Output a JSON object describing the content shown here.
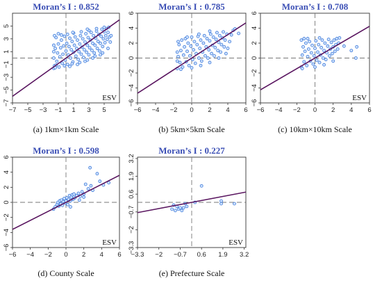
{
  "chart_data": [
    {
      "type": "scatter",
      "caption": "(a) 1km×1km Scale",
      "title": "Moran’s I : 0.852",
      "xlabel": "ESV",
      "ylabel": "",
      "xlim": [
        -7,
        7
      ],
      "ylim": [
        -7,
        7
      ],
      "xticks": [
        -7,
        -5,
        -3,
        -1,
        1,
        3,
        5
      ],
      "yticks": [
        -7,
        -5,
        -3,
        -1,
        1,
        3,
        5
      ],
      "ytick_rotation": "vertical",
      "grid": false,
      "fit_line": {
        "slope": 0.852,
        "intercept": 0
      },
      "points": [
        [
          -1.5,
          -1.2
        ],
        [
          -1.4,
          1.5
        ],
        [
          -1.3,
          3.2
        ],
        [
          -1.2,
          -0.5
        ],
        [
          -1.1,
          0.8
        ],
        [
          -1,
          2.2
        ],
        [
          -0.9,
          -1.4
        ],
        [
          -0.8,
          0.2
        ],
        [
          -0.7,
          1.6
        ],
        [
          -0.6,
          2.8
        ],
        [
          -0.5,
          -0.8
        ],
        [
          -0.4,
          0.6
        ],
        [
          -0.3,
          1.9
        ],
        [
          -0.2,
          3.4
        ],
        [
          -0.1,
          -0.3
        ],
        [
          0,
          1.1
        ],
        [
          0.1,
          2.3
        ],
        [
          0.2,
          -1
        ],
        [
          0.3,
          0.5
        ],
        [
          0.4,
          1.8
        ],
        [
          0.5,
          3.1
        ],
        [
          0.6,
          0
        ],
        [
          0.7,
          1.3
        ],
        [
          0.8,
          2.6
        ],
        [
          0.9,
          -0.6
        ],
        [
          1,
          0.9
        ],
        [
          1.1,
          2
        ],
        [
          1.2,
          3.3
        ],
        [
          1.3,
          0.3
        ],
        [
          1.4,
          1.5
        ],
        [
          1.5,
          2.8
        ],
        [
          1.6,
          -0.2
        ],
        [
          1.7,
          1
        ],
        [
          1.8,
          2.2
        ],
        [
          1.9,
          3.5
        ],
        [
          2,
          0.6
        ],
        [
          2.1,
          1.7
        ],
        [
          2.2,
          3
        ],
        [
          2.3,
          0.1
        ],
        [
          2.4,
          1.3
        ],
        [
          2.5,
          2.5
        ],
        [
          2.6,
          3.8
        ],
        [
          2.7,
          0.9
        ],
        [
          2.8,
          2
        ],
        [
          2.9,
          3.2
        ],
        [
          3,
          0.5
        ],
        [
          3.1,
          1.6
        ],
        [
          3.2,
          2.8
        ],
        [
          3.3,
          4
        ],
        [
          3.4,
          1.2
        ],
        [
          3.5,
          2.3
        ],
        [
          3.6,
          3.5
        ],
        [
          3.7,
          0.8
        ],
        [
          3.8,
          2
        ],
        [
          3.9,
          3.1
        ],
        [
          4,
          4.2
        ],
        [
          4.1,
          1.5
        ],
        [
          4.2,
          2.6
        ],
        [
          4.3,
          3.7
        ],
        [
          4.4,
          1.1
        ],
        [
          4.5,
          2.3
        ],
        [
          4.6,
          3.4
        ],
        [
          4.7,
          4.5
        ],
        [
          4.8,
          1.8
        ],
        [
          4.9,
          3
        ],
        [
          5,
          4.1
        ],
        [
          5.1,
          2.4
        ],
        [
          5.2,
          3.5
        ],
        [
          5.3,
          4.6
        ],
        [
          5.4,
          2.9
        ],
        [
          5.5,
          4
        ],
        [
          5.6,
          4.8
        ],
        [
          5.7,
          3.3
        ],
        [
          -1.6,
          0
        ],
        [
          -1.6,
          2
        ],
        [
          -1.6,
          -1.6
        ],
        [
          -1.5,
          3.5
        ],
        [
          -1.6,
          1
        ],
        [
          -1.4,
          -1.5
        ],
        [
          0.5,
          -1.3
        ],
        [
          1.5,
          -1
        ],
        [
          2.5,
          -0.5
        ],
        [
          3.5,
          0
        ],
        [
          4.5,
          0.5
        ],
        [
          0.2,
          3.7
        ],
        [
          1,
          3.9
        ],
        [
          2,
          4.1
        ],
        [
          3,
          4.3
        ],
        [
          4,
          4.6
        ],
        [
          5,
          4.8
        ],
        [
          -0.6,
          3.6
        ],
        [
          -1,
          3.8
        ],
        [
          0.9,
          4
        ],
        [
          2.8,
          4.5
        ],
        [
          -1.3,
          -1.1
        ],
        [
          -0.2,
          -1.2
        ],
        [
          0.8,
          -0.9
        ],
        [
          1.8,
          -0.7
        ],
        [
          2.8,
          -0.3
        ],
        [
          3.8,
          0.3
        ],
        [
          4.8,
          0.8
        ],
        [
          5.5,
          1.5
        ],
        [
          5.8,
          2.5
        ],
        [
          5.9,
          3.5
        ]
      ]
    },
    {
      "type": "scatter",
      "caption": "(b) 5km×5km Scale",
      "title": "Moran’s I : 0.785",
      "xlabel": "",
      "ylabel": "",
      "xlim": [
        -6,
        6
      ],
      "ylim": [
        -6,
        6
      ],
      "xticks": [
        -6,
        -4,
        -2,
        0,
        2,
        4,
        6
      ],
      "yticks": [
        -6,
        -4,
        -2,
        0,
        2,
        4,
        6
      ],
      "ytick_rotation": "vertical",
      "grid": false,
      "fit_line": {
        "slope": 0.785,
        "intercept": 0
      },
      "points": [
        [
          -1.6,
          -1.4
        ],
        [
          -1.5,
          0.2
        ],
        [
          -1.4,
          1.8
        ],
        [
          -1.3,
          -0.6
        ],
        [
          -1.2,
          1
        ],
        [
          -1.1,
          2.4
        ],
        [
          -1,
          -1.2
        ],
        [
          -0.9,
          0.4
        ],
        [
          -0.8,
          1.5
        ],
        [
          -0.7,
          2.6
        ],
        [
          -0.6,
          -0.5
        ],
        [
          -0.5,
          0.9
        ],
        [
          -0.4,
          2
        ],
        [
          -0.3,
          -1
        ],
        [
          -0.2,
          0.3
        ],
        [
          -0.1,
          1.6
        ],
        [
          0,
          2.8
        ],
        [
          0.1,
          -0.2
        ],
        [
          0.2,
          1.1
        ],
        [
          0.3,
          2.2
        ],
        [
          0.4,
          -0.7
        ],
        [
          0.5,
          0.6
        ],
        [
          0.6,
          1.8
        ],
        [
          0.7,
          2.9
        ],
        [
          0.8,
          0
        ],
        [
          0.9,
          1.3
        ],
        [
          1,
          2.4
        ],
        [
          1.1,
          -0.4
        ],
        [
          1.2,
          0.8
        ],
        [
          1.3,
          2
        ],
        [
          1.4,
          3
        ],
        [
          1.5,
          0.3
        ],
        [
          1.6,
          1.5
        ],
        [
          1.7,
          2.6
        ],
        [
          1.8,
          0
        ],
        [
          1.9,
          1.1
        ],
        [
          2,
          2.3
        ],
        [
          2.1,
          3.2
        ],
        [
          2.2,
          0.6
        ],
        [
          2.3,
          1.7
        ],
        [
          2.4,
          2.8
        ],
        [
          2.5,
          0.3
        ],
        [
          2.6,
          1.4
        ],
        [
          2.7,
          2.5
        ],
        [
          2.8,
          3.4
        ],
        [
          2.9,
          1
        ],
        [
          3,
          2.1
        ],
        [
          3.1,
          3
        ],
        [
          3.2,
          0.8
        ],
        [
          3.3,
          1.8
        ],
        [
          3.4,
          2.7
        ],
        [
          3.5,
          3.5
        ],
        [
          3.6,
          1.5
        ],
        [
          3.7,
          2.4
        ],
        [
          3.9,
          3.2
        ],
        [
          4,
          1.3
        ],
        [
          4.2,
          2.2
        ],
        [
          4.4,
          3.1
        ],
        [
          4.6,
          3.7
        ],
        [
          4.8,
          3.9
        ],
        [
          5.2,
          3.3
        ],
        [
          3.8,
          0.6
        ],
        [
          -1.6,
          0.8
        ],
        [
          -1.5,
          2.2
        ],
        [
          -1.6,
          -0.4
        ],
        [
          -1.2,
          -1.5
        ],
        [
          0,
          -1.3
        ],
        [
          1,
          -1
        ],
        [
          2,
          -0.6
        ],
        [
          3,
          0
        ],
        [
          -0.5,
          2.8
        ],
        [
          0.8,
          3.2
        ],
        [
          2,
          3.6
        ]
      ]
    },
    {
      "type": "scatter",
      "caption": "(c) 10km×10km Scale",
      "title": "Moran’s I : 0.708",
      "xlabel": "ESV",
      "ylabel": "",
      "xlim": [
        -6,
        6
      ],
      "ylim": [
        -6,
        6
      ],
      "xticks": [
        -6,
        -4,
        -2,
        0,
        2,
        4,
        6
      ],
      "yticks": [
        -6,
        -4,
        -2,
        0,
        2,
        4,
        6
      ],
      "ytick_rotation": "vertical",
      "grid": false,
      "fit_line": {
        "slope": 0.708,
        "intercept": 0
      },
      "points": [
        [
          -1.5,
          -1.2
        ],
        [
          -1.4,
          0.4
        ],
        [
          -1.3,
          1.5
        ],
        [
          -1.2,
          -0.5
        ],
        [
          -1.1,
          0.9
        ],
        [
          -1,
          2
        ],
        [
          -0.9,
          -1
        ],
        [
          -0.8,
          0.2
        ],
        [
          -0.7,
          1.2
        ],
        [
          -0.6,
          2.2
        ],
        [
          -0.5,
          -0.4
        ],
        [
          -0.4,
          0.7
        ],
        [
          -0.3,
          1.7
        ],
        [
          -0.2,
          -0.8
        ],
        [
          -0.1,
          0.3
        ],
        [
          0,
          1.3
        ],
        [
          0.1,
          2.3
        ],
        [
          0.2,
          -0.3
        ],
        [
          0.3,
          0.8
        ],
        [
          0.4,
          1.8
        ],
        [
          0.5,
          -0.6
        ],
        [
          0.6,
          0.4
        ],
        [
          0.7,
          1.4
        ],
        [
          0.8,
          2.4
        ],
        [
          0.9,
          0
        ],
        [
          1,
          1
        ],
        [
          1.1,
          2
        ],
        [
          1.2,
          -0.2
        ],
        [
          1.3,
          0.7
        ],
        [
          1.4,
          1.6
        ],
        [
          1.5,
          2.5
        ],
        [
          1.6,
          0.3
        ],
        [
          1.7,
          1.2
        ],
        [
          1.8,
          2.1
        ],
        [
          1.9,
          0.6
        ],
        [
          2,
          1.5
        ],
        [
          2.1,
          2.4
        ],
        [
          2.2,
          0.9
        ],
        [
          2.3,
          1.8
        ],
        [
          2.4,
          2.6
        ],
        [
          2.5,
          1.2
        ],
        [
          2.6,
          2
        ],
        [
          2.7,
          2.7
        ],
        [
          -1.5,
          2.4
        ],
        [
          -1.4,
          -1.4
        ],
        [
          -1.2,
          2.6
        ],
        [
          0,
          -1.2
        ],
        [
          1,
          -0.9
        ],
        [
          2,
          -0.4
        ],
        [
          -0.8,
          2.6
        ],
        [
          0.5,
          2.7
        ],
        [
          4,
          1
        ],
        [
          4.6,
          1.5
        ],
        [
          3.2,
          1.6
        ],
        [
          4.5,
          0
        ]
      ]
    },
    {
      "type": "scatter",
      "caption": "(d) County Scale",
      "title": "Moran’s I : 0.598",
      "xlabel": "ESV",
      "ylabel": "",
      "xlim": [
        -6,
        6
      ],
      "ylim": [
        -6,
        6
      ],
      "xticks": [
        -6,
        -4,
        -2,
        0,
        2,
        4,
        6
      ],
      "yticks": [
        -6,
        -4,
        -2,
        0,
        2,
        4,
        6
      ],
      "ytick_rotation": "vertical",
      "grid": false,
      "fit_line": {
        "slope": 0.598,
        "intercept": 0
      },
      "points": [
        [
          -1.2,
          -0.6
        ],
        [
          -1,
          -0.3
        ],
        [
          -0.9,
          0
        ],
        [
          -0.8,
          -0.5
        ],
        [
          -0.7,
          0.2
        ],
        [
          -0.6,
          -0.2
        ],
        [
          -0.5,
          0.3
        ],
        [
          -0.4,
          -0.4
        ],
        [
          -0.3,
          0.1
        ],
        [
          -0.2,
          0.5
        ],
        [
          -0.1,
          -0.1
        ],
        [
          0,
          0.2
        ],
        [
          0.1,
          0.6
        ],
        [
          0.2,
          -0.3
        ],
        [
          0.3,
          0.4
        ],
        [
          0.4,
          0.9
        ],
        [
          0.5,
          0.2
        ],
        [
          0.6,
          0.7
        ],
        [
          0.7,
          1
        ],
        [
          0.8,
          0.4
        ],
        [
          0.9,
          1.1
        ],
        [
          1,
          0.6
        ],
        [
          1.2,
          0.9
        ],
        [
          1.4,
          1.2
        ],
        [
          1.6,
          0.8
        ],
        [
          1.8,
          1.4
        ],
        [
          2,
          1.1
        ],
        [
          2.2,
          2.4
        ],
        [
          2.5,
          1.8
        ],
        [
          2.7,
          4.6
        ],
        [
          2.8,
          2.2
        ],
        [
          3,
          1.6
        ],
        [
          3.5,
          3.8
        ],
        [
          3.8,
          2.8
        ],
        [
          4.2,
          2.3
        ],
        [
          4.8,
          2.6
        ],
        [
          1.5,
          0.3
        ],
        [
          2,
          0.7
        ],
        [
          -1.4,
          -0.9
        ],
        [
          0.5,
          -0.6
        ]
      ]
    },
    {
      "type": "scatter",
      "caption": "(e) Prefecture Scale",
      "title": "Moran’s I : 0.227",
      "xlabel": "ESV",
      "ylabel": "",
      "xlim": [
        -3.3,
        3.3
      ],
      "ylim": [
        -3.3,
        3.3
      ],
      "xticks": [
        -3.3,
        -2,
        -0.7,
        0.6,
        1.9,
        3.2
      ],
      "yticks": [
        -3.3,
        -2,
        -0.7,
        0.6,
        1.9,
        3.2
      ],
      "ytick_rotation": "vertical",
      "grid": false,
      "fit_line": {
        "slope": 0.227,
        "intercept": 0
      },
      "points": [
        [
          -1.2,
          -0.5
        ],
        [
          -1.1,
          -0.2
        ],
        [
          -1,
          -0.6
        ],
        [
          -0.9,
          -0.3
        ],
        [
          -0.8,
          -0.5
        ],
        [
          -0.7,
          -0.4
        ],
        [
          -0.6,
          -0.6
        ],
        [
          -0.5,
          -0.4
        ],
        [
          -0.4,
          -0.1
        ],
        [
          -0.3,
          -0.3
        ],
        [
          0.2,
          0
        ],
        [
          0.6,
          1.2
        ],
        [
          1.8,
          0.1
        ],
        [
          2.6,
          -0.1
        ],
        [
          1.8,
          -0.1
        ]
      ]
    }
  ]
}
